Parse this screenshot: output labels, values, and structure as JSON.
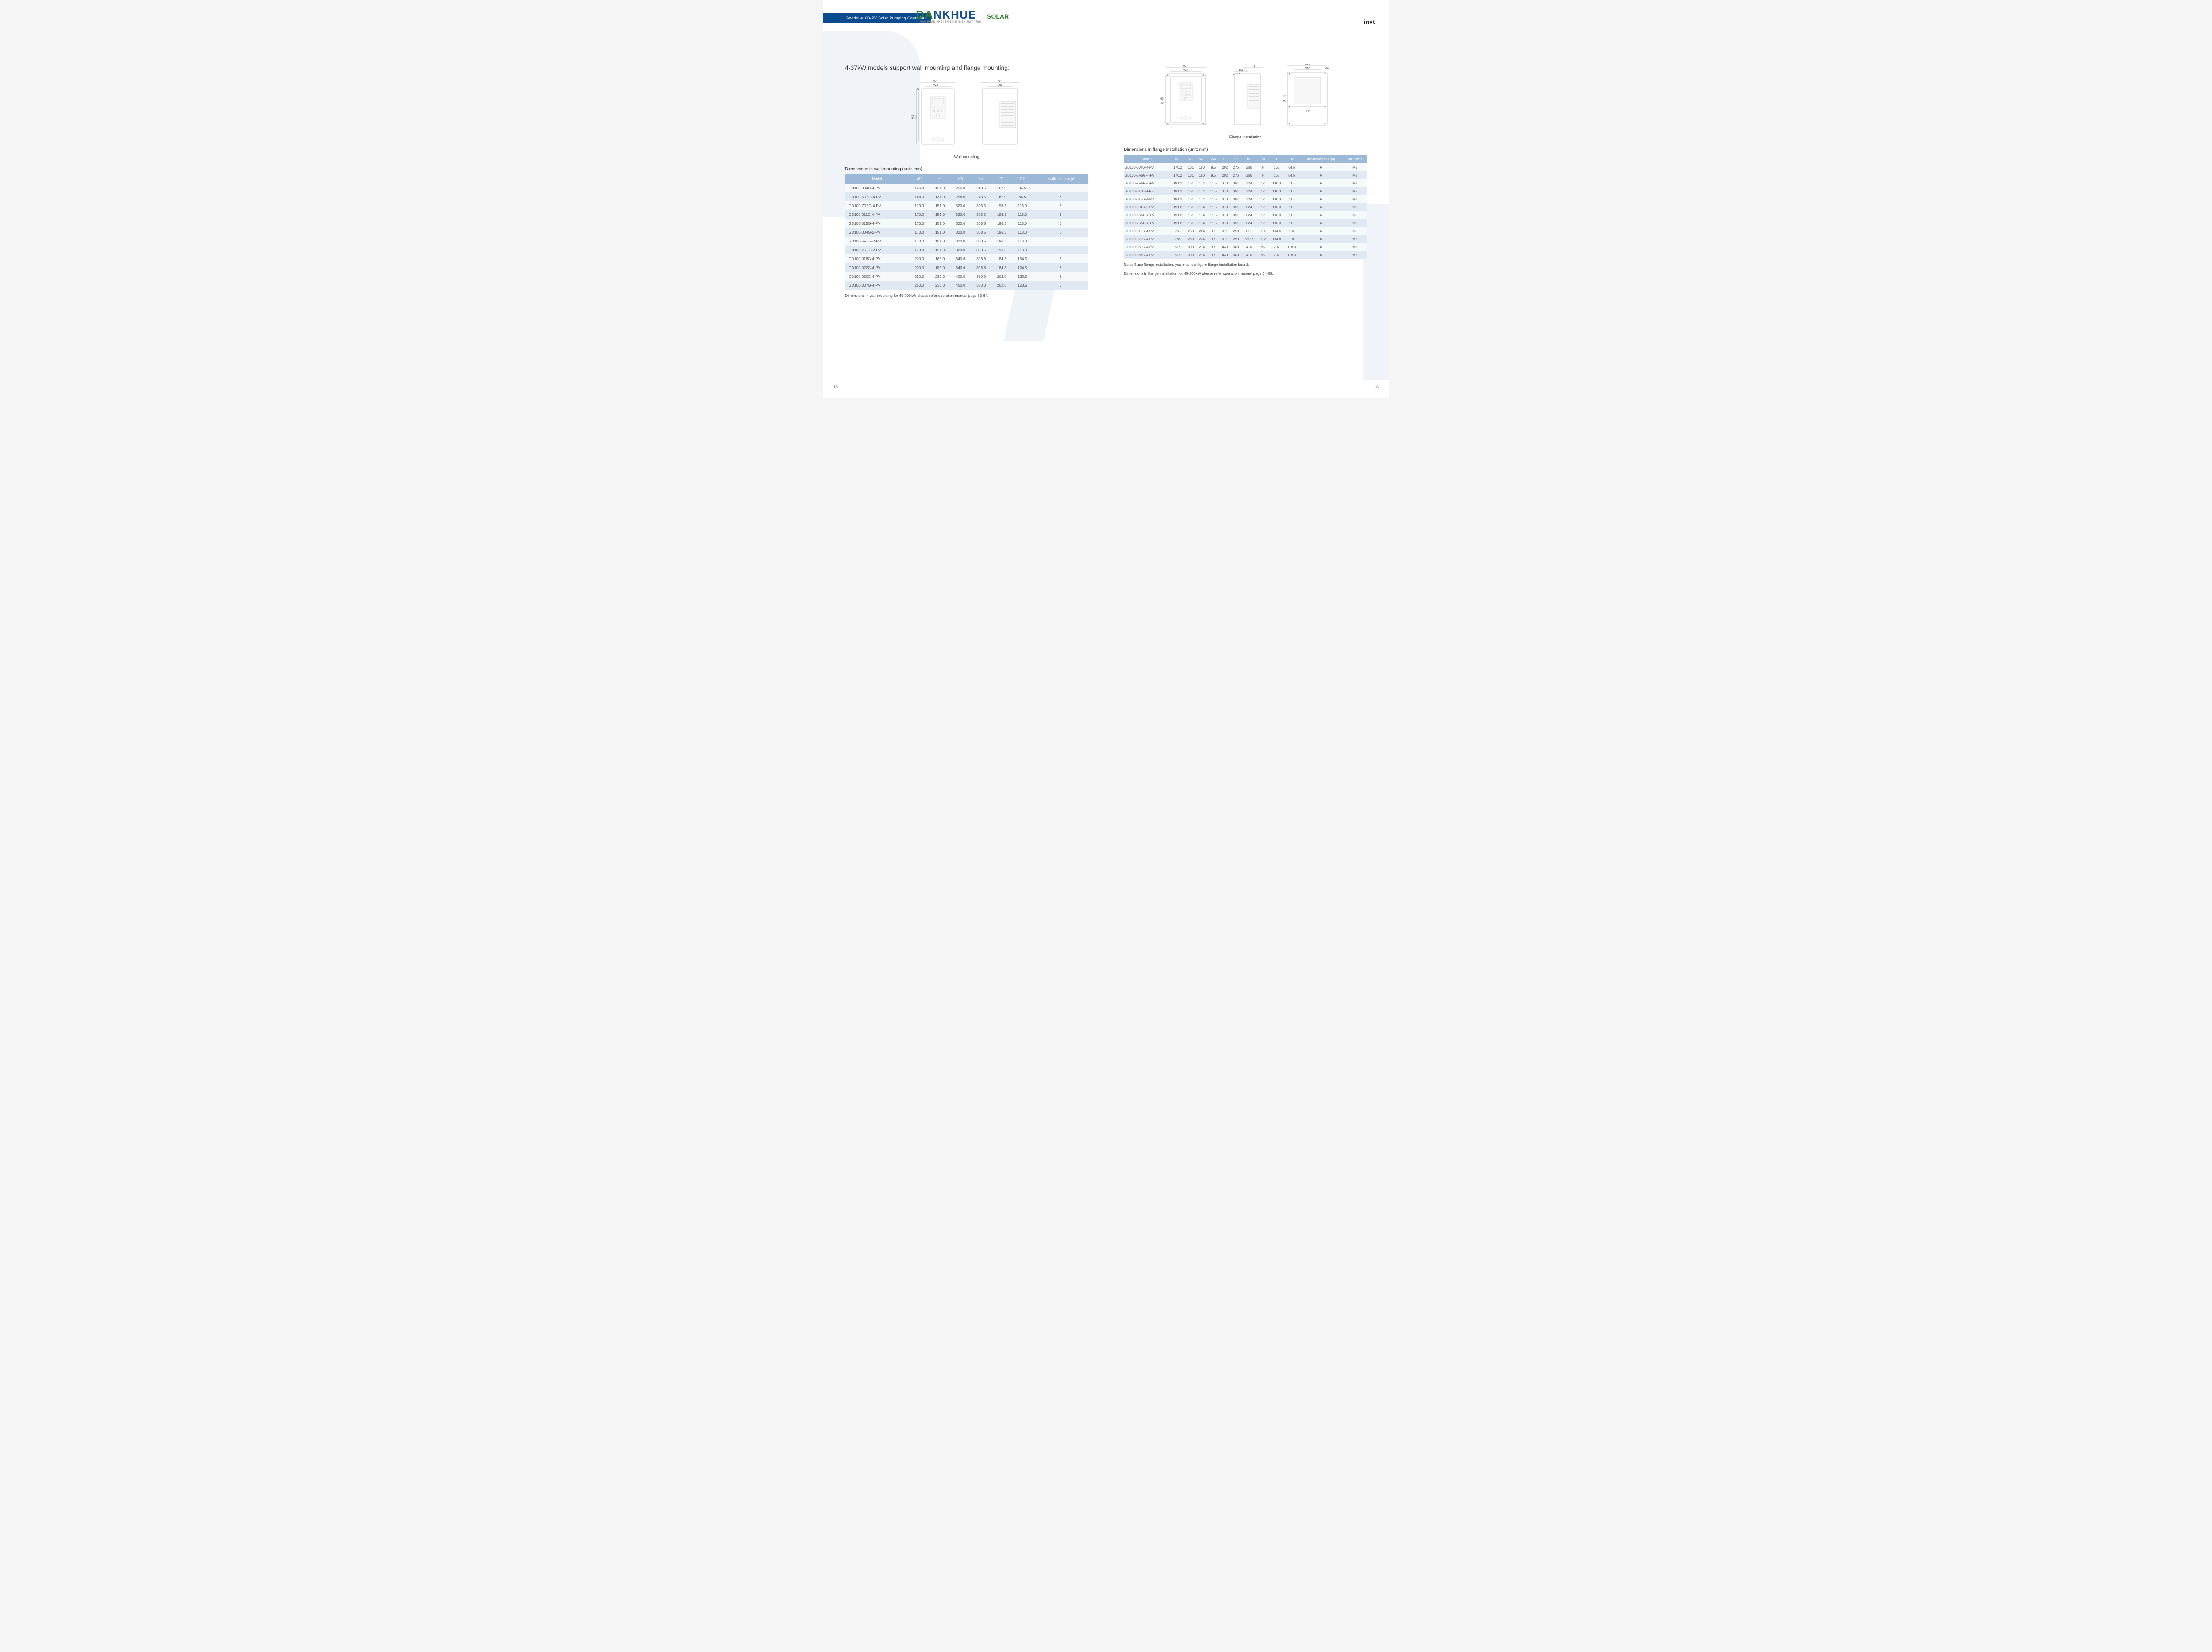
{
  "header": {
    "title": "Goodrive100-PV Solar Pumping Controller",
    "logo_part1": "DA",
    "logo_part2": "NKHUE",
    "logo_sub": "— NHÀ PHÂN PHỐI THIẾT BỊ ĐIỆN MẶT TRỜI —",
    "logo_solar": "SOLAR",
    "brand_right": "invt"
  },
  "left": {
    "section_title": "4-37kW models support wall mounting and flange mounting:",
    "diagram_caption": "Wall mounting",
    "table_caption": "Dimensions in wall mounting (unit: mm)",
    "diag_labels": {
      "W1": "W1",
      "W2": "W2",
      "D1": "D1",
      "D2": "D2",
      "H1": "H1",
      "H2": "H2",
      "phi": "Ø"
    },
    "footnote": "Dimensions in wall mounting for 45-200kW please refer operation manual page 63-64.",
    "page_num": "15",
    "columns": [
      "Model",
      "W1",
      "H1",
      "H3",
      "H4",
      "D1",
      "D2",
      "Installation hole (d)"
    ],
    "rows": [
      [
        "GD100-004G-4-PV",
        "146.0",
        "131.0",
        "256.0",
        "243.5",
        "167.0",
        "84.5",
        "6"
      ],
      [
        "GD100-5R5G-4-PV",
        "146.0",
        "131.0",
        "256.0",
        "243.5",
        "167.0",
        "84.5",
        "6"
      ],
      [
        "GD100-7R5G-4-PV",
        "170.0",
        "151.0",
        "320.0",
        "303.5",
        "196.3",
        "113.0",
        "6"
      ],
      [
        "GD100-011G-4-PV",
        "170.0",
        "151.0",
        "320.0",
        "303.5",
        "196.3",
        "113.0",
        "6"
      ],
      [
        "GD100-015G-4-PV",
        "170.0",
        "151.0",
        "320.0",
        "303.5",
        "196.3",
        "113.0",
        "6"
      ],
      [
        "GD100-004G-2-PV",
        "170.0",
        "151.0",
        "320.0",
        "303.5",
        "196.3",
        "113.0",
        "6"
      ],
      [
        "GD100-5R5G-2-PV",
        "170.0",
        "151.0",
        "320.0",
        "303.5",
        "196.3",
        "113.0",
        "6"
      ],
      [
        "GD100-7R5G-2-PV",
        "170.0",
        "151.0",
        "320.0",
        "303.5",
        "196.3",
        "113.0",
        "6"
      ],
      [
        "GD100-018G-4-PV",
        "200.0",
        "185.0",
        "340.6",
        "328.6",
        "184.3",
        "104.5",
        "6"
      ],
      [
        "GD100-022G-4-PV",
        "200.0",
        "185.0",
        "340.6",
        "328.6",
        "184.3",
        "104.5",
        "6"
      ],
      [
        "GD100-030G-4-PV",
        "250.0",
        "230.0",
        "400.0",
        "380.0",
        "202.0",
        "123.5",
        "6"
      ],
      [
        "GD100-037G-4-PV",
        "250.0",
        "230.0",
        "400.0",
        "380.0",
        "202.0",
        "123.5",
        "6"
      ]
    ]
  },
  "right": {
    "diagram_caption": "Flange installation",
    "table_caption": "Dimensions in flange installation (unit: mm)",
    "diag_labels": {
      "W1": "W1",
      "W2": "W2",
      "W3": "W3",
      "W4": "W4",
      "D1": "D1",
      "D2": "D2",
      "H1": "H1",
      "H2": "H2",
      "H3": "H3",
      "H4": "H4",
      "phi": "Ø5.0"
    },
    "footnote1": "Note: If use flange installation, you must configure flange installation boards.",
    "footnote2": "Dimensions in flange installation for 45-200kW please refer operation manual page 64-65.",
    "page_num": "16",
    "columns": [
      "Model",
      "W1",
      "W2",
      "W3",
      "W4",
      "H1",
      "H2",
      "H3",
      "H4",
      "D1",
      "D2",
      "Installation hole (d)",
      "Nut specs"
    ],
    "rows": [
      [
        "GD100-004G-4-PV",
        "170.2",
        "131",
        "150",
        "9.5",
        "292",
        "276",
        "260",
        "6",
        "167",
        "84.5",
        "6",
        "M5"
      ],
      [
        "GD100-5R5G-4-PV",
        "170.2",
        "131",
        "150",
        "9.5",
        "292",
        "276",
        "260",
        "6",
        "167",
        "84.5",
        "6",
        "M5"
      ],
      [
        "GD100-7R5G-4-PV",
        "191.2",
        "151",
        "174",
        "11.5",
        "370",
        "351",
        "324",
        "12",
        "196.3",
        "113",
        "6",
        "M5"
      ],
      [
        "GD100-011G-4-PV",
        "191.2",
        "151",
        "174",
        "11.5",
        "370",
        "351",
        "324",
        "12",
        "196.3",
        "113",
        "6",
        "M5"
      ],
      [
        "GD100-015G-4-PV",
        "191.2",
        "151",
        "174",
        "11.5",
        "370",
        "351",
        "324",
        "12",
        "196.3",
        "113",
        "6",
        "M5"
      ],
      [
        "GD100-004G-2-PV",
        "191.2",
        "151",
        "174",
        "11.5",
        "370",
        "351",
        "324",
        "12",
        "196.3",
        "113",
        "6",
        "M5"
      ],
      [
        "GD100-5R5G-2-PV",
        "191.2",
        "151",
        "174",
        "11.5",
        "370",
        "351",
        "324",
        "12",
        "196.3",
        "113",
        "6",
        "M5"
      ],
      [
        "GD100-7R5G-2-PV",
        "191.2",
        "151",
        "174",
        "11.5",
        "370",
        "351",
        "324",
        "12",
        "196.3",
        "113",
        "6",
        "M5"
      ],
      [
        "GD100-018G-4-PV",
        "266",
        "250",
        "224",
        "13",
        "371",
        "250",
        "350.6",
        "20.3",
        "184.6",
        "104",
        "6",
        "M5"
      ],
      [
        "GD100-022G-4-PV",
        "266",
        "250",
        "224",
        "13",
        "371",
        "250",
        "350.6",
        "20.3",
        "184.6",
        "104",
        "6",
        "M5"
      ],
      [
        "GD100-030G-4-PV",
        "316",
        "300",
        "274",
        "13",
        "430",
        "300",
        "410",
        "55",
        "202",
        "118.3",
        "6",
        "M5"
      ],
      [
        "GD100-037G-4-PV",
        "316",
        "300",
        "274",
        "13",
        "430",
        "300",
        "410",
        "55",
        "202",
        "118.3",
        "6",
        "M5"
      ]
    ]
  },
  "colors": {
    "header_bg": "#0a4c8f",
    "table_header_bg": "#9bb8d6",
    "row_even_bg": "#e0e9f1",
    "row_odd_bg": "#f6f9fb",
    "divider": "#bcd2e6"
  }
}
